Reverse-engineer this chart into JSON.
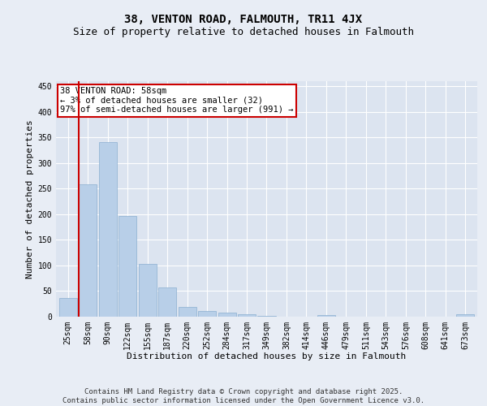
{
  "title": "38, VENTON ROAD, FALMOUTH, TR11 4JX",
  "subtitle": "Size of property relative to detached houses in Falmouth",
  "xlabel": "Distribution of detached houses by size in Falmouth",
  "ylabel": "Number of detached properties",
  "categories": [
    "25sqm",
    "58sqm",
    "90sqm",
    "122sqm",
    "155sqm",
    "187sqm",
    "220sqm",
    "252sqm",
    "284sqm",
    "317sqm",
    "349sqm",
    "382sqm",
    "414sqm",
    "446sqm",
    "479sqm",
    "511sqm",
    "543sqm",
    "576sqm",
    "608sqm",
    "641sqm",
    "673sqm"
  ],
  "values": [
    37,
    258,
    341,
    197,
    103,
    57,
    19,
    11,
    8,
    5,
    1,
    0,
    0,
    3,
    0,
    0,
    0,
    0,
    0,
    0,
    4
  ],
  "bar_color": "#b8cfe8",
  "bar_edge_color": "#8aaed0",
  "highlight_line_color": "#cc0000",
  "annotation_text": "38 VENTON ROAD: 58sqm\n← 3% of detached houses are smaller (32)\n97% of semi-detached houses are larger (991) →",
  "annotation_box_color": "#cc0000",
  "ylim": [
    0,
    460
  ],
  "yticks": [
    0,
    50,
    100,
    150,
    200,
    250,
    300,
    350,
    400,
    450
  ],
  "bg_color": "#e8edf5",
  "plot_bg_color": "#dce4f0",
  "grid_color": "#ffffff",
  "footer_text": "Contains HM Land Registry data © Crown copyright and database right 2025.\nContains public sector information licensed under the Open Government Licence v3.0.",
  "title_fontsize": 10,
  "subtitle_fontsize": 9,
  "axis_label_fontsize": 8,
  "tick_fontsize": 7,
  "annotation_fontsize": 7.5,
  "footer_fontsize": 6.5
}
